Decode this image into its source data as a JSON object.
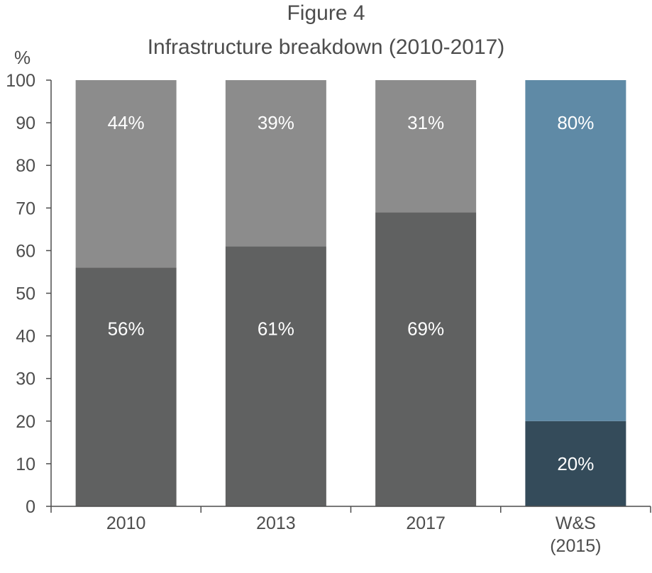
{
  "figure_number": "Figure 4",
  "chart_data": {
    "type": "bar",
    "stacked": true,
    "title": "Infrastructure breakdown (2010-2017)",
    "ylabel": "%",
    "ylim": [
      0,
      100
    ],
    "yticks": [
      0,
      10,
      20,
      30,
      40,
      50,
      60,
      70,
      80,
      90,
      100
    ],
    "categories": [
      [
        "2010"
      ],
      [
        "2013"
      ],
      [
        "2017"
      ],
      [
        "W&S",
        "(2015)"
      ]
    ],
    "bars": [
      {
        "segments": [
          {
            "value": 56,
            "label": "56%",
            "color": "#606161"
          },
          {
            "value": 44,
            "label": "44%",
            "color": "#8c8c8c"
          }
        ]
      },
      {
        "segments": [
          {
            "value": 61,
            "label": "61%",
            "color": "#606161"
          },
          {
            "value": 39,
            "label": "39%",
            "color": "#8c8c8c"
          }
        ]
      },
      {
        "segments": [
          {
            "value": 69,
            "label": "69%",
            "color": "#606161"
          },
          {
            "value": 31,
            "label": "31%",
            "color": "#8c8c8c"
          }
        ]
      },
      {
        "segments": [
          {
            "value": 20,
            "label": "20%",
            "color": "#344b5a"
          },
          {
            "value": 80,
            "label": "80%",
            "color": "#5f8aa6"
          }
        ]
      }
    ],
    "legend": "none",
    "grid": false
  }
}
